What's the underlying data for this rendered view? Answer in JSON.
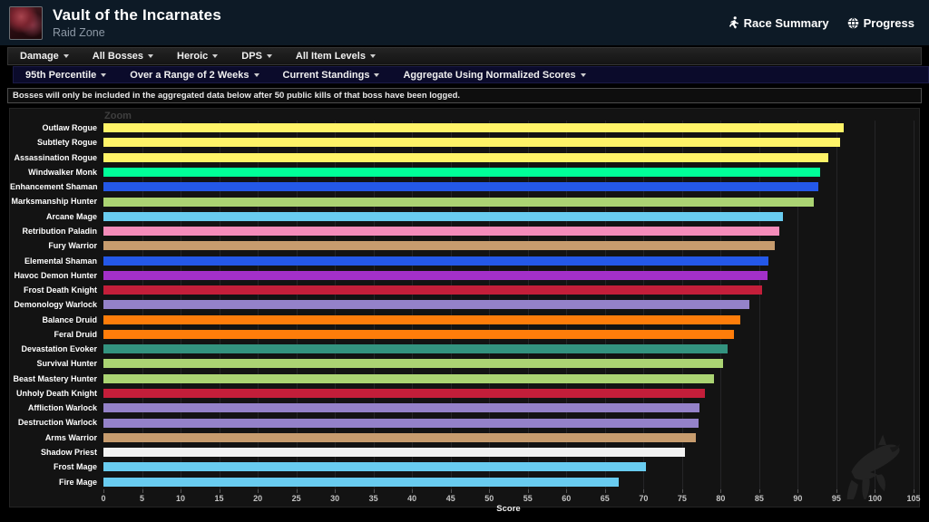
{
  "header": {
    "title": "Vault of the Incarnates",
    "subtitle": "Raid Zone",
    "race_summary_label": "Race Summary",
    "progress_label": "Progress"
  },
  "icons": {
    "race_summary": "runner-icon",
    "progress": "globe-icon",
    "menu_caret": "caret-down-icon",
    "watermark": "warcraftlogs-wolf-icon"
  },
  "menu_primary": [
    "Damage",
    "All Bosses",
    "Heroic",
    "DPS",
    "All Item Levels"
  ],
  "menu_secondary": [
    "95th Percentile",
    "Over a Range of 2 Weeks",
    "Current Standings",
    "Aggregate Using Normalized Scores"
  ],
  "notice": "Bosses will only be included in the aggregated data below after 50 public kills of that boss have been logged.",
  "chart_data": {
    "type": "bar",
    "orientation": "horizontal",
    "zoom_label": "Zoom",
    "xlabel": "Score",
    "xlim": [
      0,
      105
    ],
    "tick_step": 5,
    "grid": true,
    "categories": [
      "Outlaw Rogue",
      "Subtlety Rogue",
      "Assassination Rogue",
      "Windwalker Monk",
      "Enhancement Shaman",
      "Marksmanship Hunter",
      "Arcane Mage",
      "Retribution Paladin",
      "Fury Warrior",
      "Elemental Shaman",
      "Havoc Demon Hunter",
      "Frost Death Knight",
      "Demonology Warlock",
      "Balance Druid",
      "Feral Druid",
      "Devastation Evoker",
      "Survival Hunter",
      "Beast Mastery Hunter",
      "Unholy Death Knight",
      "Affliction Warlock",
      "Destruction Warlock",
      "Arms Warrior",
      "Shadow Priest",
      "Frost Mage",
      "Fire Mage"
    ],
    "values": [
      95.9,
      95.5,
      93.9,
      92.9,
      92.6,
      92.1,
      88.1,
      87.6,
      87.0,
      86.2,
      86.1,
      85.4,
      83.7,
      82.6,
      81.7,
      80.9,
      80.3,
      79.1,
      77.9,
      77.3,
      77.1,
      76.8,
      75.4,
      70.3,
      66.8
    ],
    "colors": [
      "#FFF468",
      "#FFF468",
      "#FFF468",
      "#00FF98",
      "#2458E8",
      "#ABD473",
      "#69CCF0",
      "#F58CBA",
      "#C79C6E",
      "#2458E8",
      "#A330C9",
      "#C41E3A",
      "#9482C9",
      "#FF7D0A",
      "#FF7D0A",
      "#33937F",
      "#ABD473",
      "#ABD473",
      "#C41E3A",
      "#9482C9",
      "#9482C9",
      "#C79C6E",
      "#F2F2F2",
      "#69CCF0",
      "#69CCF0"
    ]
  }
}
